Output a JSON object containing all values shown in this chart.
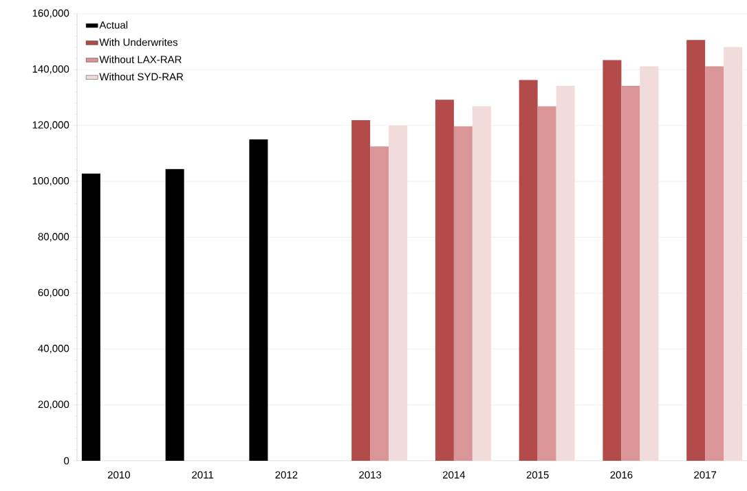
{
  "chart_data": {
    "type": "bar",
    "categories": [
      "2010",
      "2011",
      "2012",
      "2013",
      "2014",
      "2015",
      "2016",
      "2017"
    ],
    "series": [
      {
        "name": "Actual",
        "color": "#000000",
        "values": [
          102800,
          104400,
          115000,
          null,
          null,
          null,
          null,
          null
        ]
      },
      {
        "name": "With Underwrites",
        "color": "#b34b4a",
        "values": [
          null,
          null,
          null,
          121900,
          129200,
          136300,
          143400,
          150600
        ]
      },
      {
        "name": "Without LAX-RAR",
        "color": "#da9696",
        "values": [
          null,
          null,
          null,
          112500,
          119700,
          126900,
          134200,
          141200
        ]
      },
      {
        "name": "Without SYD-RAR",
        "color": "#f2dcdb",
        "values": [
          null,
          null,
          null,
          120000,
          126900,
          134200,
          141200,
          148100
        ]
      }
    ],
    "ylim": [
      0,
      160000
    ],
    "yticks": [
      {
        "value": 0,
        "label": "0"
      },
      {
        "value": 20000,
        "label": "20,000"
      },
      {
        "value": 40000,
        "label": "40,000"
      },
      {
        "value": 60000,
        "label": "60,000"
      },
      {
        "value": 80000,
        "label": "80,000"
      },
      {
        "value": 100000,
        "label": "100,000"
      },
      {
        "value": 120000,
        "label": "120,000"
      },
      {
        "value": 140000,
        "label": "140,000"
      },
      {
        "value": 160000,
        "label": "160,000"
      }
    ],
    "grid": "y",
    "legend": "top left"
  }
}
